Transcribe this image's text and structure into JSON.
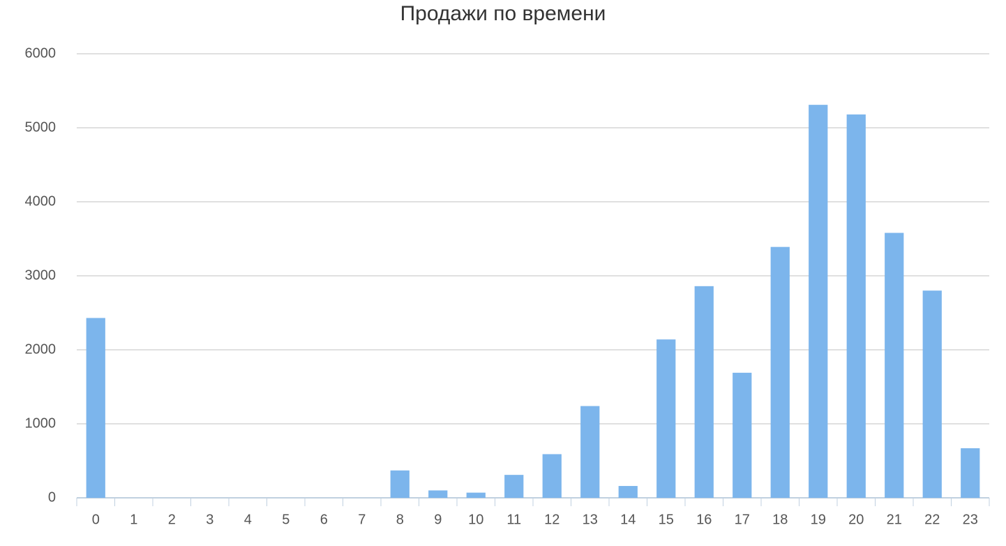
{
  "chart_data": {
    "type": "bar",
    "title": "Продажи по времени",
    "categories": [
      "0",
      "1",
      "2",
      "3",
      "4",
      "5",
      "6",
      "7",
      "8",
      "9",
      "10",
      "11",
      "12",
      "13",
      "14",
      "15",
      "16",
      "17",
      "18",
      "19",
      "20",
      "21",
      "22",
      "23"
    ],
    "values": [
      2430,
      0,
      0,
      0,
      0,
      0,
      0,
      0,
      370,
      100,
      70,
      310,
      590,
      1240,
      160,
      2140,
      2860,
      1690,
      3390,
      5310,
      5180,
      3580,
      2800,
      670
    ],
    "color": "#7cb5ec",
    "ylim": [
      0,
      6000
    ],
    "yticks": [
      0,
      1000,
      2000,
      3000,
      4000,
      5000,
      6000
    ],
    "grid": true
  }
}
